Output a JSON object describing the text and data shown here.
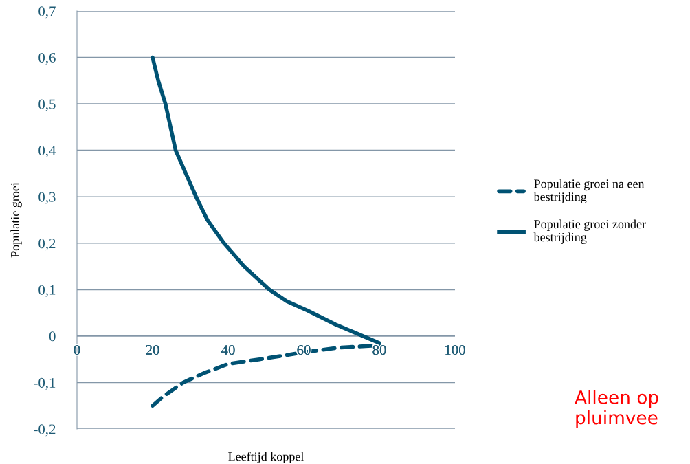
{
  "chart_data": {
    "type": "line",
    "xlabel": "Leeftijd koppel",
    "ylabel": "Populatie groei",
    "xlim": [
      0,
      100
    ],
    "xticks": [
      0,
      20,
      40,
      60,
      80,
      100
    ],
    "ylim": [
      -0.2,
      0.7
    ],
    "yticks": [
      {
        "value": -0.2,
        "label": "-0,2"
      },
      {
        "value": -0.1,
        "label": "-0,1"
      },
      {
        "value": 0,
        "label": "0"
      },
      {
        "value": 0.1,
        "label": "0,1"
      },
      {
        "value": 0.2,
        "label": "0,2"
      },
      {
        "value": 0.3,
        "label": "0,3"
      },
      {
        "value": 0.4,
        "label": "0,4"
      },
      {
        "value": 0.5,
        "label": "0,5"
      },
      {
        "value": 0.6,
        "label": "0,6"
      },
      {
        "value": 0.7,
        "label": "0,7"
      }
    ],
    "grid": "y",
    "legend": "right",
    "series": [
      {
        "name": "Populatie groei na een bestrijding",
        "color": "#005273",
        "line_style": "dashed",
        "x": [
          20,
          22.8,
          28.1,
          33.5,
          40,
          48.3,
          60,
          69.1,
          80
        ],
        "values": [
          -0.15,
          -0.13,
          -0.1,
          -0.08,
          -0.06,
          -0.05,
          -0.035,
          -0.025,
          -0.02
        ]
      },
      {
        "name": "Populatie groei zonder bestrijding",
        "color": "#005273",
        "line_style": "solid",
        "x": [
          20,
          21.5,
          23.4,
          26.1,
          31.5,
          34.5,
          38.9,
          44.2,
          50.9,
          55.5,
          61,
          68.4,
          80
        ],
        "values": [
          0.6,
          0.55,
          0.5,
          0.4,
          0.3,
          0.25,
          0.2,
          0.15,
          0.1,
          0.075,
          0.055,
          0.025,
          -0.015
        ]
      }
    ],
    "annotations": [
      "Alleen op pluimvee"
    ]
  }
}
